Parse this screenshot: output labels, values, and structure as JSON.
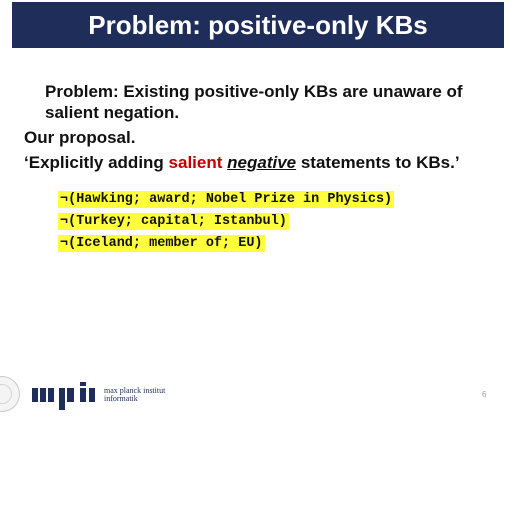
{
  "slide": {
    "title": "Problem: positive-only KBs",
    "problem_statement": "Problem: Existing positive-only KBs are unaware of salient negation.",
    "proposal_heading": "Our proposal.",
    "proposal_quote": {
      "open_quote": "‘",
      "prefix": "Explicitly adding ",
      "salient": "salient",
      "space": " ",
      "negative": "negative",
      "suffix": " statements to KBs.",
      "close_quote": "’"
    },
    "statements": [
      "¬(Hawking; award; Nobel Prize in Physics)",
      "¬(Turkey; capital; Istanbul)",
      "¬(Iceland; member of; EU)"
    ],
    "page_number": "6"
  },
  "footer": {
    "logo_mark": "mpi",
    "institute_line1": "max planck institut",
    "institute_line2": "informatik"
  },
  "colors": {
    "title_bar": "#1e2d5a",
    "salient_red": "#c00000",
    "highlight_yellow": "#ffff3b",
    "logo_navy": "#1e2d5a"
  }
}
